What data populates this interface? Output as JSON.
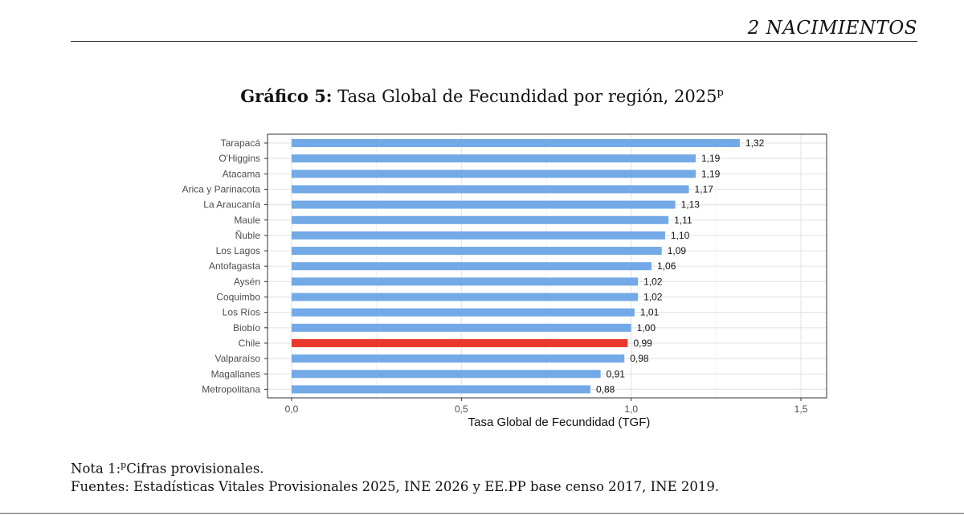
{
  "header": {
    "section": "2   NACIMIENTOS"
  },
  "figure": {
    "label": "Gráfico 5:",
    "title": "Tasa Global de Fecundidad por región, 2025",
    "title_sup": "p"
  },
  "notes": {
    "note_prefix": "Nota 1:",
    "note_sup": "p",
    "note_text": "Cifras provisionales.",
    "sources": "Fuentes: Estadísticas Vitales Provisionales 2025, INE 2026 y EE.PP base censo 2017, INE 2019."
  },
  "chart_data": {
    "type": "bar",
    "orientation": "horizontal",
    "categories": [
      "Tarapacá",
      "O'Higgins",
      "Atacama",
      "Arica y Parinacota",
      "La Araucanía",
      "Maule",
      "Ñuble",
      "Los Lagos",
      "Antofagasta",
      "Aysén",
      "Coquimbo",
      "Los Ríos",
      "Biobío",
      "Chile",
      "Valparaíso",
      "Magallanes",
      "Metropolitana"
    ],
    "values": [
      1.32,
      1.19,
      1.19,
      1.17,
      1.13,
      1.11,
      1.1,
      1.09,
      1.06,
      1.02,
      1.02,
      1.01,
      1.0,
      0.99,
      0.98,
      0.91,
      0.88
    ],
    "value_labels": [
      "1,32",
      "1,19",
      "1,19",
      "1,17",
      "1,13",
      "1,11",
      "1,10",
      "1,09",
      "1,06",
      "1,02",
      "1,02",
      "1,01",
      "1,00",
      "0,99",
      "0,98",
      "0,91",
      "0,88"
    ],
    "highlight": "Chile",
    "xlabel": "Tasa Global de Fecundidad (TGF)",
    "ylabel": "",
    "xlim": [
      0,
      1.5
    ],
    "xticks": [
      0,
      0.5,
      1.0,
      1.5
    ],
    "xtick_labels": [
      "0,0",
      "0,5",
      "1,0",
      "1,5"
    ],
    "grid": true,
    "colors": {
      "bar": "#73a9e6",
      "highlight": "#e8392c",
      "grid": "#e6e6e6",
      "panel_border": "#333333"
    }
  }
}
